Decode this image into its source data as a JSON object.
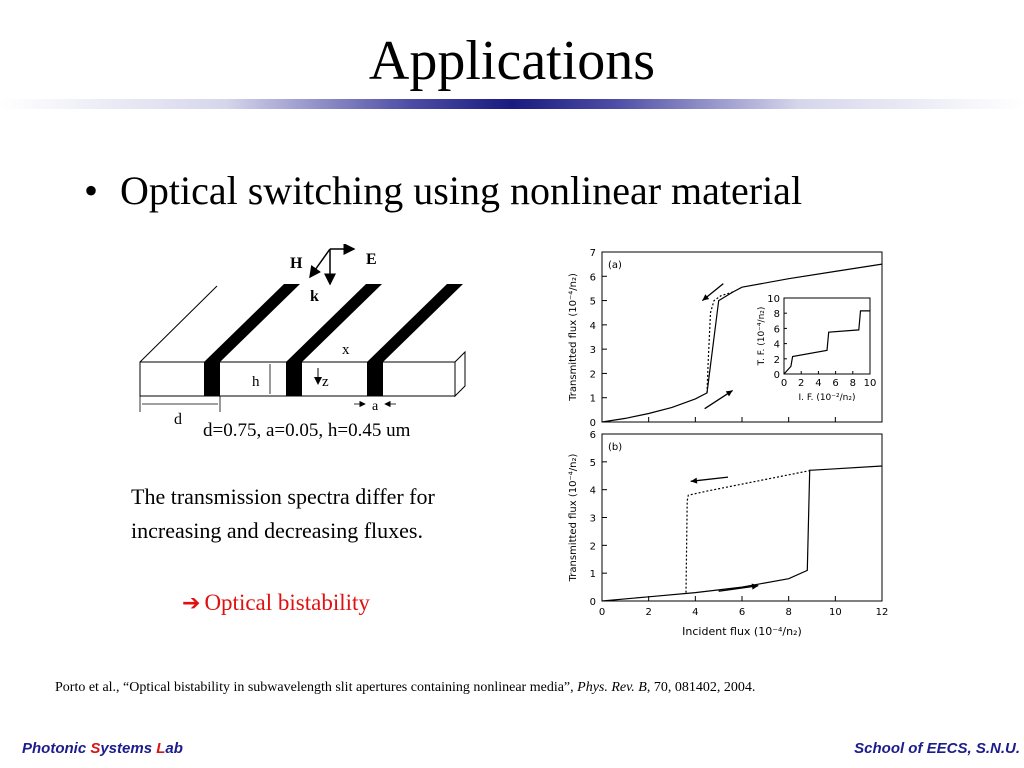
{
  "slide": {
    "title": "Applications",
    "bullet": "Optical switching using nonlinear material",
    "dims_caption": "d=0.75, a=0.05, h=0.45 um",
    "description": "The transmission spectra differ for increasing and decreasing fluxes.",
    "result_arrow_icon": "right-arrow-icon",
    "result": "Optical bistability",
    "reference": {
      "authors": "Porto et al., “Optical bistability in subwavelength slit apertures containing nonlinear media”, ",
      "journal": "Phys. Rev. B",
      "details": ", 70, 081402, 2004."
    },
    "footer_left": {
      "p1": "Photonic ",
      "s": "S",
      "p2": "ystems ",
      "l": "L",
      "p3": "ab"
    },
    "footer_right": "School of EECS, S.N.U."
  },
  "diagram": {
    "labels": {
      "H": "H",
      "E": "E",
      "k": "k",
      "x": "x",
      "z": "z",
      "h": "h",
      "d": "d",
      "a": "a"
    }
  },
  "colors": {
    "title_rule": "#1a1a80",
    "footer_text": "#1c1c8c",
    "accent_red": "#e01010"
  },
  "chart_data": [
    {
      "type": "line",
      "panel_label": "(a)",
      "ylabel": "Transmitted flux (10⁻⁴/n₂)",
      "ylim": [
        0,
        7
      ],
      "yticks": [
        "0",
        "1",
        "2",
        "3",
        "4",
        "5",
        "6",
        "7"
      ],
      "xlim": [
        0,
        12
      ],
      "series": [
        {
          "x": [
            0,
            1,
            2,
            3,
            4,
            4.5,
            5,
            5.6,
            6,
            8,
            10,
            12
          ],
          "y": [
            0,
            0.15,
            0.35,
            0.6,
            0.95,
            1.2,
            5.0,
            5.35,
            5.55,
            5.9,
            6.2,
            6.5
          ]
        },
        {
          "style": "dashed",
          "x": [
            4.5,
            4.55,
            4.65,
            4.8,
            5.1,
            5.6
          ],
          "y": [
            1.2,
            2.5,
            4.5,
            5.0,
            5.2,
            5.35
          ]
        }
      ],
      "inset": {
        "xlabel": "I. F. (10⁻²/n₂)",
        "ylabel": "T. F. (10⁻⁴/n₂)",
        "xlim": [
          0,
          10
        ],
        "ylim": [
          0,
          10
        ],
        "xticks": [
          "0",
          "2",
          "4",
          "6",
          "8",
          "10"
        ],
        "yticks": [
          "0",
          "2",
          "4",
          "6",
          "8",
          "10"
        ],
        "series": [
          {
            "x": [
              0,
              0.8,
              1,
              5,
              5.2,
              8.7,
              8.9,
              10
            ],
            "y": [
              0,
              1,
              2.3,
              3.1,
              5.5,
              5.8,
              8.3,
              8.3
            ]
          }
        ]
      }
    },
    {
      "type": "line",
      "panel_label": "(b)",
      "xlabel": "Incident flux (10⁻⁴/n₂)",
      "ylabel": "Transmitted flux (10⁻⁴/n₂)",
      "ylim": [
        0,
        6
      ],
      "yticks": [
        "0",
        "1",
        "2",
        "3",
        "4",
        "5",
        "6"
      ],
      "xlim": [
        0,
        12
      ],
      "xticks": [
        "0",
        "2",
        "4",
        "6",
        "8",
        "10",
        "12"
      ],
      "series": [
        {
          "x": [
            0,
            2,
            4,
            6,
            8,
            8.8,
            8.9,
            9,
            10,
            12
          ],
          "y": [
            0,
            0.15,
            0.3,
            0.5,
            0.8,
            1.1,
            4.7,
            4.7,
            4.75,
            4.85
          ]
        },
        {
          "style": "dashed",
          "x": [
            3.6,
            3.65,
            3.7,
            4.5,
            6,
            9
          ],
          "y": [
            0.3,
            3.6,
            3.8,
            3.95,
            4.2,
            4.7
          ]
        }
      ]
    }
  ]
}
